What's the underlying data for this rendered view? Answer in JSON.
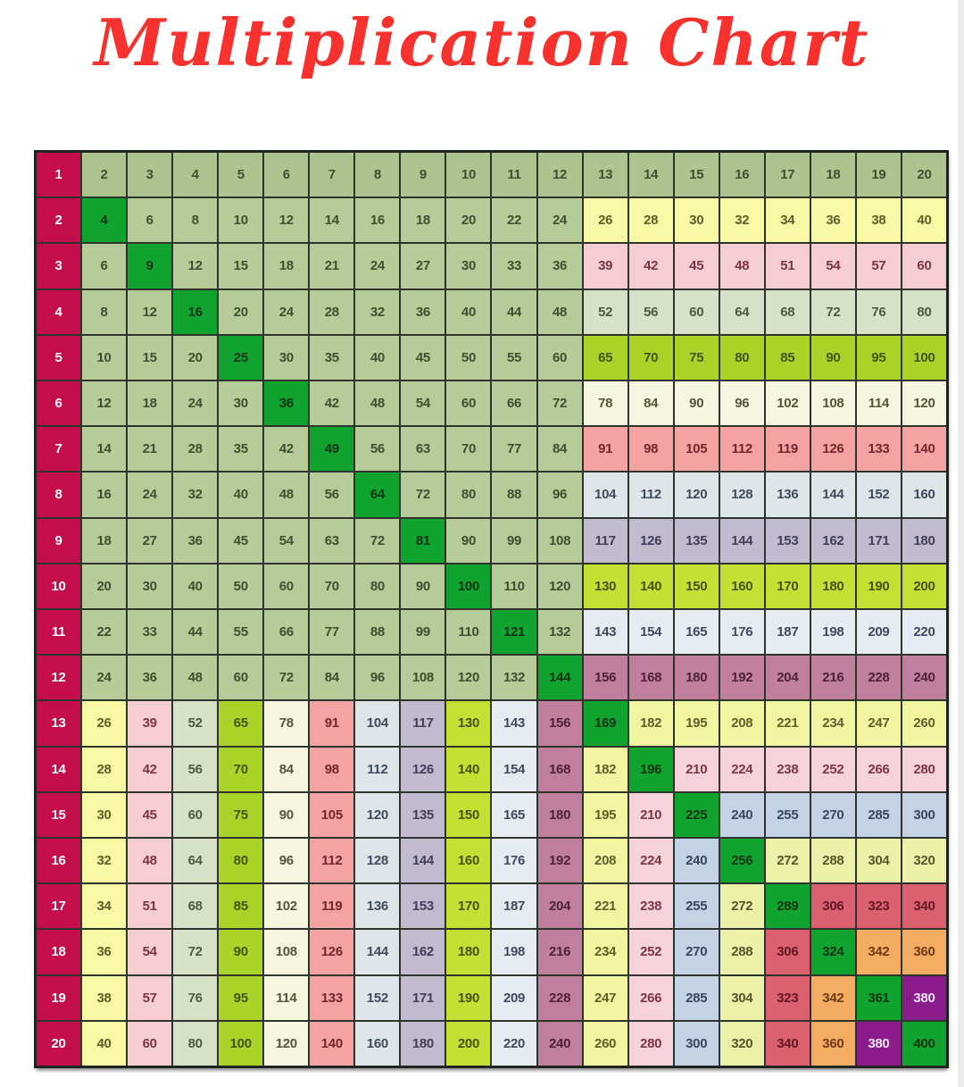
{
  "title": {
    "text": "Multiplication Chart"
  },
  "palette": {
    "background": "#FFFFFF",
    "title_red": "#F7312D",
    "grid_line": "#2E332B",
    "outer_border": "#20241E",
    "label_column": {
      "bg": "#C40E4C",
      "fg": "#FFFFFF"
    },
    "row1": {
      "bg": "#ADC48E",
      "fg": "#3A5130"
    },
    "body_green": {
      "bg": "#B6CC98",
      "fg": "#3A5130"
    },
    "diagonal": {
      "bg": "#10A32F",
      "fg": "#0E3414"
    },
    "bands": {
      "2": {
        "bg": "#F7F9A5",
        "fg": "#5F5F2A"
      },
      "3": {
        "bg": "#F6CDD4",
        "fg": "#7C3642"
      },
      "4": {
        "bg": "#D7E1C8",
        "fg": "#4C5A42"
      },
      "5": {
        "bg": "#A9D329",
        "fg": "#44530E"
      },
      "6": {
        "bg": "#F7F7E1",
        "fg": "#55553A"
      },
      "7": {
        "bg": "#F4A3A2",
        "fg": "#73262D"
      },
      "8": {
        "bg": "#DEE6E9",
        "fg": "#3F4A5E"
      },
      "9": {
        "bg": "#C2BACE",
        "fg": "#413E5A"
      },
      "10": {
        "bg": "#C5E034",
        "fg": "#44530E"
      },
      "11": {
        "bg": "#E7EBF2",
        "fg": "#3F4A5E"
      },
      "12": {
        "bg": "#C17F9E",
        "fg": "#4F2138"
      },
      "13": {
        "bg": "#F3F6A0",
        "fg": "#5F5F2A"
      },
      "14": {
        "bg": "#F6D3DB",
        "fg": "#7C3642"
      },
      "15": {
        "bg": "#C3D3E5",
        "fg": "#3A4660"
      },
      "16": {
        "bg": "#ECF0A9",
        "fg": "#55572A"
      },
      "17": {
        "bg": "#DB6070",
        "fg": "#621722"
      },
      "18": {
        "bg": "#F4AC62",
        "fg": "#6E3A14"
      },
      "19": {
        "bg": "#8B1C8C",
        "fg": "#F4E4F4"
      }
    }
  },
  "chart_data": {
    "type": "table",
    "title": "Multiplication Chart",
    "rows": [
      {
        "label": 1,
        "values": [
          2,
          3,
          4,
          5,
          6,
          7,
          8,
          9,
          10,
          11,
          12,
          13,
          14,
          15,
          16,
          17,
          18,
          19,
          20
        ]
      },
      {
        "label": 2,
        "values": [
          4,
          6,
          8,
          10,
          12,
          14,
          16,
          18,
          20,
          22,
          24,
          26,
          28,
          30,
          32,
          34,
          36,
          38,
          40
        ]
      },
      {
        "label": 3,
        "values": [
          6,
          9,
          12,
          15,
          18,
          21,
          24,
          27,
          30,
          33,
          36,
          39,
          42,
          45,
          48,
          51,
          54,
          57,
          60
        ]
      },
      {
        "label": 4,
        "values": [
          8,
          12,
          16,
          20,
          24,
          28,
          32,
          36,
          40,
          44,
          48,
          52,
          56,
          60,
          64,
          68,
          72,
          76,
          80
        ]
      },
      {
        "label": 5,
        "values": [
          10,
          15,
          20,
          25,
          30,
          35,
          40,
          45,
          50,
          55,
          60,
          65,
          70,
          75,
          80,
          85,
          90,
          95,
          100
        ]
      },
      {
        "label": 6,
        "values": [
          12,
          18,
          24,
          30,
          36,
          42,
          48,
          54,
          60,
          66,
          72,
          78,
          84,
          90,
          96,
          102,
          108,
          114,
          120
        ]
      },
      {
        "label": 7,
        "values": [
          14,
          21,
          28,
          35,
          42,
          49,
          56,
          63,
          70,
          77,
          84,
          91,
          98,
          105,
          112,
          119,
          126,
          133,
          140
        ]
      },
      {
        "label": 8,
        "values": [
          16,
          24,
          32,
          40,
          48,
          56,
          64,
          72,
          80,
          88,
          96,
          104,
          112,
          120,
          128,
          136,
          144,
          152,
          160
        ]
      },
      {
        "label": 9,
        "values": [
          18,
          27,
          36,
          45,
          54,
          63,
          72,
          81,
          90,
          99,
          108,
          117,
          126,
          135,
          144,
          153,
          162,
          171,
          180
        ]
      },
      {
        "label": 10,
        "values": [
          20,
          30,
          40,
          50,
          60,
          70,
          80,
          90,
          100,
          110,
          120,
          130,
          140,
          150,
          160,
          170,
          180,
          190,
          200
        ]
      },
      {
        "label": 11,
        "values": [
          22,
          33,
          44,
          55,
          66,
          77,
          88,
          99,
          110,
          121,
          132,
          143,
          154,
          165,
          176,
          187,
          198,
          209,
          220
        ]
      },
      {
        "label": 12,
        "values": [
          24,
          36,
          48,
          60,
          72,
          84,
          96,
          108,
          120,
          132,
          144,
          156,
          168,
          180,
          192,
          204,
          216,
          228,
          240
        ]
      },
      {
        "label": 13,
        "values": [
          26,
          39,
          52,
          65,
          78,
          91,
          104,
          117,
          130,
          143,
          156,
          169,
          182,
          195,
          208,
          221,
          234,
          247,
          260
        ]
      },
      {
        "label": 14,
        "values": [
          28,
          42,
          56,
          70,
          84,
          98,
          112,
          126,
          140,
          154,
          168,
          182,
          196,
          210,
          224,
          238,
          252,
          266,
          280
        ]
      },
      {
        "label": 15,
        "values": [
          30,
          45,
          60,
          75,
          90,
          105,
          120,
          135,
          150,
          165,
          180,
          195,
          210,
          225,
          240,
          255,
          270,
          285,
          300
        ]
      },
      {
        "label": 16,
        "values": [
          32,
          48,
          64,
          80,
          96,
          112,
          128,
          144,
          160,
          176,
          192,
          208,
          224,
          240,
          256,
          272,
          288,
          304,
          320
        ]
      },
      {
        "label": 17,
        "values": [
          34,
          51,
          68,
          85,
          102,
          119,
          136,
          153,
          170,
          187,
          204,
          221,
          238,
          255,
          272,
          289,
          306,
          323,
          340
        ]
      },
      {
        "label": 18,
        "values": [
          36,
          54,
          72,
          90,
          108,
          126,
          144,
          162,
          180,
          198,
          216,
          234,
          252,
          270,
          288,
          306,
          324,
          342,
          360
        ]
      },
      {
        "label": 19,
        "values": [
          38,
          57,
          76,
          95,
          114,
          133,
          152,
          171,
          190,
          209,
          228,
          247,
          266,
          285,
          304,
          323,
          342,
          361,
          380
        ]
      },
      {
        "label": 20,
        "values": [
          40,
          60,
          80,
          100,
          120,
          140,
          160,
          180,
          200,
          220,
          240,
          260,
          280,
          300,
          320,
          340,
          360,
          380,
          400
        ]
      }
    ]
  }
}
